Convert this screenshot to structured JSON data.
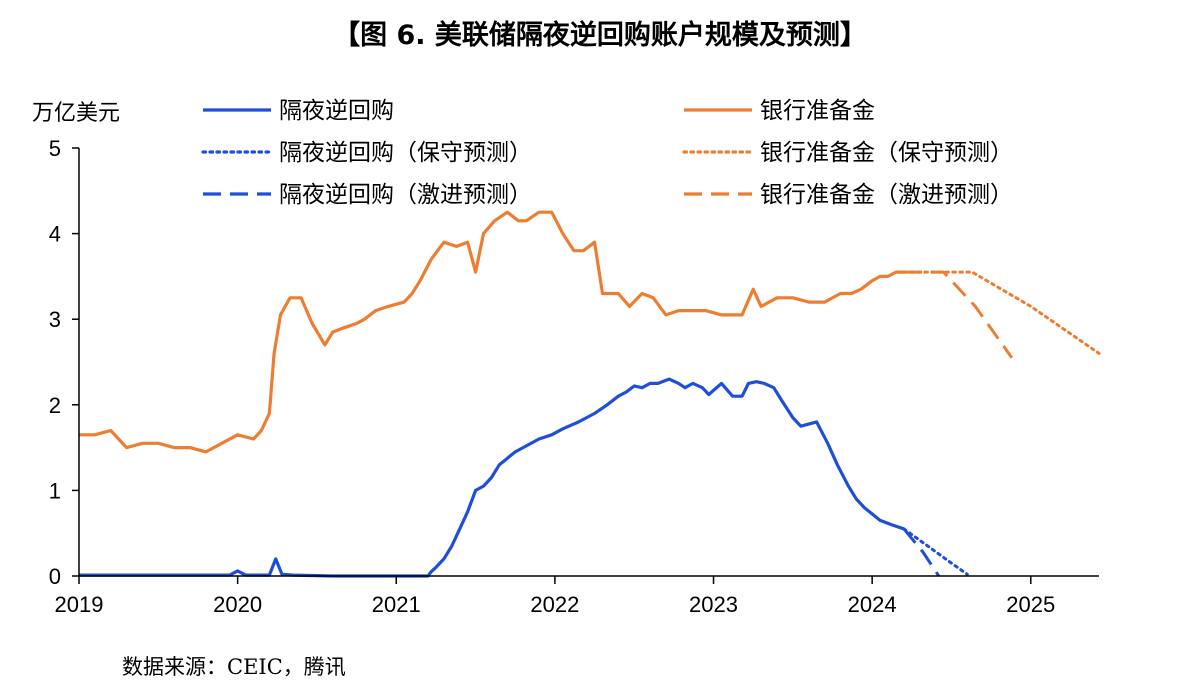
{
  "title": "【图 6. 美联储隔夜逆回购账户规模及预测】",
  "source": "数据来源：CEIC，腾讯",
  "colors": {
    "blue": "#1f4fd8",
    "orange": "#ed7d31",
    "axis": "#000000"
  },
  "chart_data": {
    "type": "line",
    "ylabel": "万亿美元",
    "ylim": [
      0,
      5
    ],
    "yticks": [
      "0",
      "1",
      "2",
      "3",
      "4",
      "5"
    ],
    "xlim": [
      2019.0,
      2025.43
    ],
    "xticks": [
      "2019",
      "2020",
      "2021",
      "2022",
      "2023",
      "2024",
      "2025"
    ],
    "legend": {
      "placement": "top"
    },
    "series": [
      {
        "name": "隔夜逆回购",
        "color": "#1f4fd8",
        "style": "solid",
        "x": [
          2019.0,
          2019.5,
          2019.95,
          2020.0,
          2020.05,
          2020.2,
          2020.24,
          2020.28,
          2020.35,
          2020.6,
          2021.0,
          2021.2,
          2021.22,
          2021.25,
          2021.3,
          2021.35,
          2021.4,
          2021.45,
          2021.5,
          2021.55,
          2021.6,
          2021.65,
          2021.75,
          2021.82,
          2021.9,
          2021.98,
          2022.05,
          2022.15,
          2022.25,
          2022.33,
          2022.4,
          2022.45,
          2022.5,
          2022.55,
          2022.6,
          2022.65,
          2022.72,
          2022.78,
          2022.82,
          2022.87,
          2022.93,
          2022.97,
          2023.05,
          2023.12,
          2023.18,
          2023.22,
          2023.27,
          2023.32,
          2023.38,
          2023.43,
          2023.5,
          2023.55,
          2023.65,
          2023.72,
          2023.78,
          2023.85,
          2023.9,
          2023.95,
          2024.05,
          2024.12,
          2024.2
        ],
        "y": [
          0.01,
          0.01,
          0.01,
          0.06,
          0.01,
          0.01,
          0.2,
          0.02,
          0.01,
          0.0,
          0.0,
          0.0,
          0.05,
          0.1,
          0.2,
          0.35,
          0.55,
          0.75,
          1.0,
          1.05,
          1.15,
          1.3,
          1.45,
          1.52,
          1.6,
          1.65,
          1.72,
          1.8,
          1.9,
          2.0,
          2.1,
          2.15,
          2.22,
          2.2,
          2.25,
          2.25,
          2.3,
          2.25,
          2.2,
          2.25,
          2.2,
          2.12,
          2.25,
          2.1,
          2.1,
          2.25,
          2.27,
          2.25,
          2.2,
          2.05,
          1.85,
          1.75,
          1.8,
          1.55,
          1.3,
          1.05,
          0.9,
          0.8,
          0.65,
          0.6,
          0.55
        ]
      },
      {
        "name": "银行准备金",
        "color": "#ed7d31",
        "style": "solid",
        "x": [
          2019.0,
          2019.1,
          2019.2,
          2019.3,
          2019.4,
          2019.5,
          2019.6,
          2019.7,
          2019.8,
          2019.9,
          2020.0,
          2020.1,
          2020.15,
          2020.2,
          2020.23,
          2020.27,
          2020.33,
          2020.4,
          2020.47,
          2020.55,
          2020.6,
          2020.67,
          2020.75,
          2020.8,
          2020.87,
          2020.95,
          2021.05,
          2021.1,
          2021.15,
          2021.22,
          2021.3,
          2021.38,
          2021.45,
          2021.5,
          2021.55,
          2021.62,
          2021.7,
          2021.77,
          2021.82,
          2021.9,
          2021.98,
          2022.05,
          2022.12,
          2022.18,
          2022.25,
          2022.3,
          2022.4,
          2022.47,
          2022.55,
          2022.62,
          2022.7,
          2022.78,
          2022.85,
          2022.95,
          2023.05,
          2023.15,
          2023.18,
          2023.25,
          2023.3,
          2023.4,
          2023.5,
          2023.6,
          2023.7,
          2023.8,
          2023.87,
          2023.93,
          2024.0,
          2024.05,
          2024.1,
          2024.15,
          2024.2
        ],
        "y": [
          1.65,
          1.65,
          1.7,
          1.5,
          1.55,
          1.55,
          1.5,
          1.5,
          1.45,
          1.55,
          1.65,
          1.6,
          1.7,
          1.9,
          2.6,
          3.05,
          3.25,
          3.25,
          2.95,
          2.7,
          2.85,
          2.9,
          2.95,
          3.0,
          3.1,
          3.15,
          3.2,
          3.3,
          3.45,
          3.7,
          3.9,
          3.85,
          3.9,
          3.55,
          4.0,
          4.15,
          4.25,
          4.15,
          4.15,
          4.25,
          4.25,
          4.0,
          3.8,
          3.8,
          3.9,
          3.3,
          3.3,
          3.15,
          3.3,
          3.25,
          3.05,
          3.1,
          3.1,
          3.1,
          3.05,
          3.05,
          3.05,
          3.35,
          3.15,
          3.25,
          3.25,
          3.2,
          3.2,
          3.3,
          3.3,
          3.35,
          3.45,
          3.5,
          3.5,
          3.55,
          3.55
        ]
      },
      {
        "name": "隔夜逆回购（保守预测）",
        "color": "#1f4fd8",
        "style": "dotted",
        "x": [
          2024.2,
          2024.35,
          2024.5,
          2024.6
        ],
        "y": [
          0.55,
          0.35,
          0.15,
          0.02
        ]
      },
      {
        "name": "银行准备金（保守预测）",
        "color": "#ed7d31",
        "style": "dotted",
        "x": [
          2024.2,
          2024.63,
          2025.0,
          2025.43
        ],
        "y": [
          3.55,
          3.55,
          3.15,
          2.6
        ]
      },
      {
        "name": "隔夜逆回购（激进预测）",
        "color": "#1f4fd8",
        "style": "dashed",
        "x": [
          2024.2,
          2024.32,
          2024.42
        ],
        "y": [
          0.55,
          0.28,
          0.0
        ]
      },
      {
        "name": "银行准备金（激进预测）",
        "color": "#ed7d31",
        "style": "dashed",
        "x": [
          2024.2,
          2024.45,
          2024.65,
          2024.88
        ],
        "y": [
          3.55,
          3.55,
          3.15,
          2.55
        ]
      }
    ]
  }
}
